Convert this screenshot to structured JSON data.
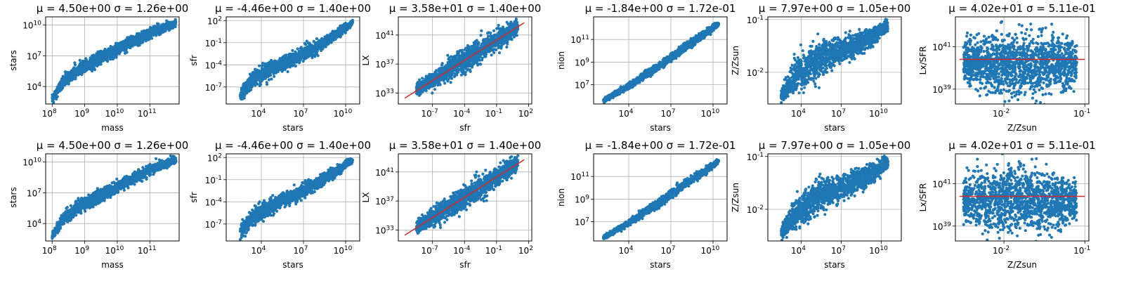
{
  "figure": {
    "rows": 2,
    "cols": 6
  },
  "colors": {
    "points": "#1f77b4",
    "fit_line": "#d62728",
    "grid": "#b0b0b0"
  },
  "chart_data": [
    {
      "type": "scatter",
      "title": "$\\mu = 4.50$e+00 $\\sigma = 1.26$e+00",
      "title_text": "μ = 4.50e+00  σ = 1.26e+00",
      "xlabel": "mass",
      "ylabel": "stars",
      "xscale": "log",
      "yscale": "log",
      "xlim_log10": [
        7.8,
        11.9
      ],
      "ylim_log10": [
        2.3,
        10.8
      ],
      "x_ticks": [
        {
          "v": 8,
          "label": "10",
          "exp": "8"
        },
        {
          "v": 9,
          "label": "10",
          "exp": "9"
        },
        {
          "v": 10,
          "label": "10",
          "exp": "10"
        },
        {
          "v": 11,
          "label": "10",
          "exp": "11"
        }
      ],
      "y_ticks": [
        {
          "v": 4,
          "label": "10",
          "exp": "4"
        },
        {
          "v": 7,
          "label": "10",
          "exp": "7"
        },
        {
          "v": 10,
          "label": "10",
          "exp": "10"
        }
      ],
      "grid": true,
      "cloud": [
        [
          8.0,
          2.8,
          0.25
        ],
        [
          8.3,
          4.3,
          0.5
        ],
        [
          8.8,
          5.6,
          0.6
        ],
        [
          9.4,
          6.6,
          0.6
        ],
        [
          10.0,
          7.6,
          0.5
        ],
        [
          10.6,
          8.6,
          0.45
        ],
        [
          11.2,
          9.5,
          0.4
        ],
        [
          11.8,
          10.2,
          0.3
        ]
      ]
    },
    {
      "type": "scatter",
      "title_text": "μ = -4.46e+00  σ = 1.40e+00",
      "xlabel": "stars",
      "ylabel": "sfr",
      "xscale": "log",
      "yscale": "log",
      "xlim_log10": [
        1.5,
        11.0
      ],
      "ylim_log10": [
        -9.3,
        2.5
      ],
      "x_ticks": [
        {
          "v": 4,
          "label": "10",
          "exp": "4"
        },
        {
          "v": 7,
          "label": "10",
          "exp": "7"
        },
        {
          "v": 10,
          "label": "10",
          "exp": "10"
        }
      ],
      "y_ticks": [
        {
          "v": -7,
          "label": "10",
          "exp": "-7"
        },
        {
          "v": -4,
          "label": "10",
          "exp": "-4"
        },
        {
          "v": -1,
          "label": "10",
          "exp": "-1"
        },
        {
          "v": 2,
          "label": "10",
          "exp": "2"
        }
      ],
      "grid": true,
      "cloud": [
        [
          2.5,
          -8.0,
          0.8
        ],
        [
          3.5,
          -5.8,
          1.0
        ],
        [
          5.0,
          -4.3,
          0.9
        ],
        [
          6.5,
          -3.0,
          0.8
        ],
        [
          8.0,
          -1.5,
          0.7
        ],
        [
          9.5,
          0.3,
          0.6
        ],
        [
          10.5,
          1.7,
          0.3
        ]
      ]
    },
    {
      "type": "scatter",
      "title_text": "μ = 3.58e+01  σ = 1.40e+00",
      "xlabel": "sfr",
      "ylabel": "LX",
      "xscale": "log",
      "yscale": "log",
      "xlim_log10": [
        -10.2,
        2.3
      ],
      "ylim_log10": [
        31.5,
        43.5
      ],
      "x_ticks": [
        {
          "v": -7,
          "label": "10",
          "exp": "-7"
        },
        {
          "v": -4,
          "label": "10",
          "exp": "-4"
        },
        {
          "v": -1,
          "label": "10",
          "exp": "-1"
        },
        {
          "v": 2,
          "label": "10",
          "exp": "2"
        }
      ],
      "y_ticks": [
        {
          "v": 33,
          "label": "10",
          "exp": "33"
        },
        {
          "v": 37,
          "label": "10",
          "exp": "37"
        },
        {
          "v": 41,
          "label": "10",
          "exp": "41"
        }
      ],
      "grid": true,
      "fit_line": [
        [
          -9.6,
          32.3
        ],
        [
          1.6,
          42.7
        ]
      ],
      "cloud": [
        [
          -8.5,
          33.5,
          0.8
        ],
        [
          -6.5,
          35.2,
          1.1
        ],
        [
          -4.5,
          37.0,
          1.3
        ],
        [
          -2.5,
          38.8,
          1.3
        ],
        [
          -0.5,
          40.8,
          1.2
        ],
        [
          1.0,
          42.2,
          0.9
        ]
      ]
    },
    {
      "type": "scatter",
      "title_text": "μ = -1.84e+00  σ = 1.72e-01",
      "xlabel": "stars",
      "ylabel": "nion",
      "xscale": "log",
      "yscale": "log",
      "xlim_log10": [
        1.5,
        11.0
      ],
      "ylim_log10": [
        5.3,
        13.0
      ],
      "x_ticks": [
        {
          "v": 4,
          "label": "10",
          "exp": "4"
        },
        {
          "v": 7,
          "label": "10",
          "exp": "7"
        },
        {
          "v": 10,
          "label": "10",
          "exp": "10"
        }
      ],
      "y_ticks": [
        {
          "v": 7,
          "label": "10",
          "exp": "7"
        },
        {
          "v": 9,
          "label": "10",
          "exp": "9"
        },
        {
          "v": 11,
          "label": "10",
          "exp": "11"
        }
      ],
      "grid": true,
      "cloud": [
        [
          2.2,
          5.6,
          0.15
        ],
        [
          4.0,
          6.9,
          0.25
        ],
        [
          6.0,
          8.5,
          0.3
        ],
        [
          8.0,
          10.3,
          0.3
        ],
        [
          10.0,
          12.0,
          0.25
        ],
        [
          10.4,
          12.4,
          0.15
        ]
      ]
    },
    {
      "type": "scatter",
      "title_text": "μ = 7.97e+00  σ = 1.05e+00",
      "xlabel": "stars",
      "ylabel": "Z/Zsun",
      "xscale": "log",
      "yscale": "log",
      "xlim_log10": [
        1.5,
        11.5
      ],
      "ylim_log10": [
        -2.6,
        -0.95
      ],
      "x_ticks": [
        {
          "v": 4,
          "label": "10",
          "exp": "4"
        },
        {
          "v": 7,
          "label": "10",
          "exp": "7"
        },
        {
          "v": 10,
          "label": "10",
          "exp": "10"
        }
      ],
      "y_ticks": [
        {
          "v": -2,
          "label": "10",
          "exp": "-2"
        },
        {
          "v": -1,
          "label": "10",
          "exp": "-1"
        }
      ],
      "grid": true,
      "cloud": [
        [
          2.5,
          -2.45,
          0.1
        ],
        [
          3.5,
          -2.1,
          0.25
        ],
        [
          5.0,
          -1.8,
          0.3
        ],
        [
          6.5,
          -1.65,
          0.22
        ],
        [
          8.0,
          -1.48,
          0.18
        ],
        [
          9.5,
          -1.3,
          0.15
        ],
        [
          10.5,
          -1.1,
          0.1
        ]
      ]
    },
    {
      "type": "scatter",
      "title_text": "μ = 4.02e+01  σ = 5.11e-01",
      "xlabel": "Z/Zsun",
      "ylabel": "Lx/SFR",
      "xscale": "log",
      "yscale": "log",
      "xlim_log10": [
        -2.6,
        -0.95
      ],
      "ylim_log10": [
        38.3,
        42.4
      ],
      "x_ticks": [
        {
          "v": -2,
          "label": "10",
          "exp": "-2"
        },
        {
          "v": -1,
          "label": "10",
          "exp": "-1"
        }
      ],
      "y_ticks": [
        {
          "v": 39,
          "label": "10",
          "exp": "39"
        },
        {
          "v": 41,
          "label": "10",
          "exp": "41"
        }
      ],
      "grid": true,
      "fit_line": [
        [
          -2.55,
          40.4
        ],
        [
          -1.0,
          40.4
        ]
      ],
      "cloud": [
        [
          -2.5,
          40.2,
          0.9
        ],
        [
          -2.2,
          40.2,
          1.2
        ],
        [
          -1.9,
          40.2,
          1.3
        ],
        [
          -1.6,
          40.2,
          1.25
        ],
        [
          -1.3,
          40.2,
          1.1
        ],
        [
          -1.1,
          40.2,
          0.8
        ]
      ]
    }
  ]
}
